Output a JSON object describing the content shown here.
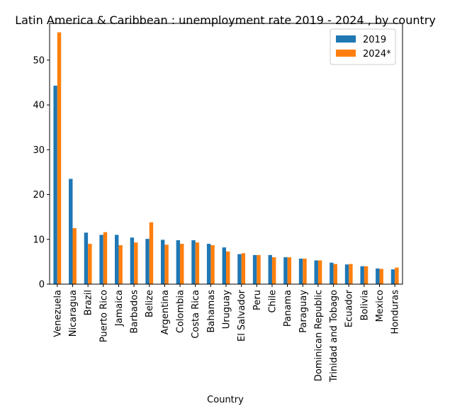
{
  "chart_data": {
    "type": "bar",
    "title": "Latin America & Caribbean : unemployment rate 2019 - 2024 , by country",
    "xlabel": "Country",
    "ylabel": "",
    "ylim": [
      0,
      58.2
    ],
    "yticks": [
      0,
      10,
      20,
      30,
      40,
      50
    ],
    "grid": false,
    "legend_position": "top-right",
    "categories": [
      "Venezuela",
      "Nicaragua",
      "Brazil",
      "Puerto Rico",
      "Jamaica",
      "Barbados",
      "Belize",
      "Argentina",
      "Colombia",
      "Costa Rica",
      "Bahamas",
      "Uruguay",
      "El Salvador",
      "Peru",
      "Chile",
      "Panama",
      "Paraguay",
      "Dominican Republic",
      "Trinidad and Tobago",
      "Ecuador",
      "Bolivia",
      "Mexico",
      "Honduras"
    ],
    "series": [
      {
        "name": "2019",
        "color": "#1f77b4",
        "values": [
          44.3,
          23.5,
          11.5,
          11.0,
          11.0,
          10.4,
          10.1,
          9.9,
          9.8,
          9.8,
          9.0,
          8.2,
          6.7,
          6.5,
          6.5,
          6.0,
          5.7,
          5.3,
          4.8,
          4.4,
          4.0,
          3.5,
          3.3
        ]
      },
      {
        "name": "2024*",
        "color": "#ff7f0e",
        "values": [
          56.2,
          12.5,
          9.0,
          11.6,
          8.7,
          9.3,
          13.8,
          8.8,
          9.0,
          9.3,
          8.7,
          7.3,
          6.9,
          6.5,
          6.0,
          6.0,
          5.7,
          5.3,
          4.5,
          4.5,
          4.0,
          3.4,
          3.7
        ]
      }
    ]
  }
}
